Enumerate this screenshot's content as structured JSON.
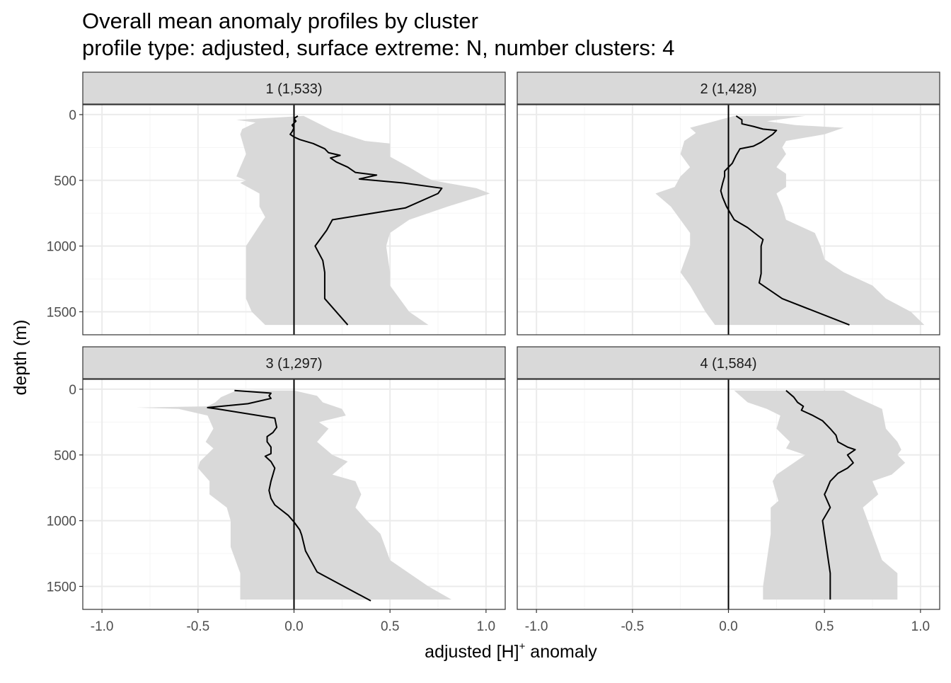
{
  "title_line1": "Overall mean anomaly profiles by cluster",
  "title_line2": "profile type: adjusted, surface extreme: N, number clusters: 4",
  "chart_data": {
    "type": "line",
    "xlabel_main": "adjusted [H]",
    "xlabel_sup": "+",
    "xlabel_rest": " anomaly",
    "ylabel": "depth (m)",
    "xlim": [
      -1.1,
      1.1
    ],
    "ylim": [
      1675,
      -75
    ],
    "y_reversed": true,
    "x_ticks": [
      -1.0,
      -0.5,
      0.0,
      0.5,
      1.0
    ],
    "x_tick_labels": [
      "-1.0",
      "-0.5",
      "0.0",
      "0.5",
      "1.0"
    ],
    "y_ticks": [
      0,
      500,
      1000,
      1500
    ],
    "y_tick_labels": [
      "0",
      "500",
      "1000",
      "1500"
    ],
    "grid": true,
    "reference_line_x": 0,
    "colors": {
      "ribbon": "#d9d9d9",
      "line": "#000000",
      "strip": "#d9d9d9",
      "grid_major": "#ebebeb",
      "grid_minor": "#f5f5f5",
      "border": "#333333"
    },
    "panels": [
      {
        "label": "1 (1,533)",
        "mean": [
          [
            0.02,
            10
          ],
          [
            0.0,
            30
          ],
          [
            0.01,
            50
          ],
          [
            -0.01,
            80
          ],
          [
            0.0,
            100
          ],
          [
            -0.01,
            130
          ],
          [
            -0.02,
            150
          ],
          [
            0.0,
            170
          ],
          [
            0.03,
            190
          ],
          [
            0.1,
            220
          ],
          [
            0.16,
            260
          ],
          [
            0.18,
            290
          ],
          [
            0.24,
            310
          ],
          [
            0.19,
            330
          ],
          [
            0.22,
            360
          ],
          [
            0.28,
            400
          ],
          [
            0.32,
            440
          ],
          [
            0.43,
            460
          ],
          [
            0.34,
            490
          ],
          [
            0.57,
            520
          ],
          [
            0.77,
            560
          ],
          [
            0.75,
            600
          ],
          [
            0.58,
            710
          ],
          [
            0.2,
            800
          ],
          [
            0.17,
            880
          ],
          [
            0.11,
            1000
          ],
          [
            0.15,
            1110
          ],
          [
            0.16,
            1200
          ],
          [
            0.16,
            1290
          ],
          [
            0.16,
            1400
          ],
          [
            0.28,
            1600
          ]
        ],
        "lower": [
          [
            -0.28,
            150
          ],
          [
            -0.27,
            110
          ],
          [
            -0.2,
            60
          ],
          [
            -0.3,
            40
          ],
          [
            -0.27,
            200
          ],
          [
            -0.25,
            300
          ],
          [
            -0.28,
            400
          ],
          [
            -0.3,
            470
          ],
          [
            -0.25,
            500
          ],
          [
            -0.28,
            520
          ],
          [
            -0.18,
            600
          ],
          [
            -0.18,
            700
          ],
          [
            -0.15,
            780
          ],
          [
            -0.16,
            800
          ],
          [
            -0.25,
            1000
          ],
          [
            -0.25,
            1200
          ],
          [
            -0.25,
            1300
          ],
          [
            -0.25,
            1400
          ],
          [
            -0.22,
            1500
          ],
          [
            -0.15,
            1600
          ]
        ],
        "upper": [
          [
            0.05,
            10
          ],
          [
            0.2,
            120
          ],
          [
            0.37,
            200
          ],
          [
            0.5,
            220
          ],
          [
            0.5,
            320
          ],
          [
            0.6,
            400
          ],
          [
            0.68,
            470
          ],
          [
            0.72,
            500
          ],
          [
            0.95,
            560
          ],
          [
            1.02,
            600
          ],
          [
            0.8,
            700
          ],
          [
            0.6,
            800
          ],
          [
            0.5,
            900
          ],
          [
            0.48,
            1000
          ],
          [
            0.5,
            1200
          ],
          [
            0.5,
            1300
          ],
          [
            0.6,
            1500
          ],
          [
            0.7,
            1600
          ]
        ]
      },
      {
        "label": "2 (1,428)",
        "mean": [
          [
            0.04,
            10
          ],
          [
            0.07,
            40
          ],
          [
            0.07,
            70
          ],
          [
            0.13,
            90
          ],
          [
            0.18,
            110
          ],
          [
            0.25,
            120
          ],
          [
            0.23,
            150
          ],
          [
            0.2,
            180
          ],
          [
            0.17,
            210
          ],
          [
            0.13,
            240
          ],
          [
            0.06,
            260
          ],
          [
            0.04,
            310
          ],
          [
            0.02,
            370
          ],
          [
            -0.02,
            430
          ],
          [
            -0.02,
            470
          ],
          [
            -0.03,
            520
          ],
          [
            -0.04,
            580
          ],
          [
            -0.03,
            630
          ],
          [
            -0.01,
            700
          ],
          [
            0.03,
            800
          ],
          [
            0.1,
            860
          ],
          [
            0.18,
            950
          ],
          [
            0.17,
            1000
          ],
          [
            0.17,
            1110
          ],
          [
            0.17,
            1210
          ],
          [
            0.16,
            1280
          ],
          [
            0.28,
            1400
          ],
          [
            0.63,
            1600
          ]
        ],
        "lower": [
          [
            0.03,
            10
          ],
          [
            -0.2,
            100
          ],
          [
            -0.17,
            140
          ],
          [
            -0.23,
            200
          ],
          [
            -0.25,
            300
          ],
          [
            -0.2,
            400
          ],
          [
            -0.25,
            470
          ],
          [
            -0.28,
            550
          ],
          [
            -0.38,
            600
          ],
          [
            -0.3,
            700
          ],
          [
            -0.25,
            800
          ],
          [
            -0.2,
            900
          ],
          [
            -0.2,
            1000
          ],
          [
            -0.25,
            1200
          ],
          [
            -0.2,
            1300
          ],
          [
            -0.12,
            1500
          ],
          [
            -0.07,
            1600
          ]
        ],
        "upper": [
          [
            0.4,
            10
          ],
          [
            0.25,
            40
          ],
          [
            0.2,
            50
          ],
          [
            0.35,
            80
          ],
          [
            0.6,
            100
          ],
          [
            0.5,
            150
          ],
          [
            0.3,
            200
          ],
          [
            0.28,
            250
          ],
          [
            0.3,
            300
          ],
          [
            0.25,
            400
          ],
          [
            0.3,
            450
          ],
          [
            0.3,
            550
          ],
          [
            0.25,
            600
          ],
          [
            0.28,
            700
          ],
          [
            0.3,
            800
          ],
          [
            0.45,
            900
          ],
          [
            0.48,
            1000
          ],
          [
            0.5,
            1100
          ],
          [
            0.6,
            1200
          ],
          [
            0.75,
            1300
          ],
          [
            0.82,
            1400
          ],
          [
            0.95,
            1500
          ],
          [
            1.02,
            1600
          ]
        ]
      },
      {
        "label": "3 (1,297)",
        "mean": [
          [
            -0.31,
            10
          ],
          [
            -0.12,
            30
          ],
          [
            -0.13,
            50
          ],
          [
            -0.12,
            70
          ],
          [
            -0.24,
            110
          ],
          [
            -0.45,
            140
          ],
          [
            -0.4,
            150
          ],
          [
            -0.1,
            220
          ],
          [
            -0.09,
            290
          ],
          [
            -0.11,
            330
          ],
          [
            -0.14,
            360
          ],
          [
            -0.14,
            400
          ],
          [
            -0.12,
            440
          ],
          [
            -0.12,
            490
          ],
          [
            -0.15,
            510
          ],
          [
            -0.12,
            550
          ],
          [
            -0.1,
            600
          ],
          [
            -0.12,
            700
          ],
          [
            -0.13,
            770
          ],
          [
            -0.12,
            830
          ],
          [
            -0.1,
            880
          ],
          [
            -0.03,
            960
          ],
          [
            0.0,
            1010
          ],
          [
            0.03,
            1070
          ],
          [
            0.04,
            1110
          ],
          [
            0.06,
            1230
          ],
          [
            0.12,
            1390
          ],
          [
            0.4,
            1610
          ]
        ],
        "lower": [
          [
            -0.3,
            10
          ],
          [
            -0.38,
            60
          ],
          [
            -0.41,
            100
          ],
          [
            -0.45,
            130
          ],
          [
            -0.82,
            140
          ],
          [
            -0.6,
            150
          ],
          [
            -0.45,
            200
          ],
          [
            -0.42,
            300
          ],
          [
            -0.46,
            400
          ],
          [
            -0.42,
            450
          ],
          [
            -0.49,
            550
          ],
          [
            -0.5,
            600
          ],
          [
            -0.44,
            700
          ],
          [
            -0.44,
            800
          ],
          [
            -0.35,
            900
          ],
          [
            -0.33,
            1000
          ],
          [
            -0.33,
            1200
          ],
          [
            -0.28,
            1400
          ],
          [
            -0.28,
            1600
          ]
        ],
        "upper": [
          [
            0.0,
            10
          ],
          [
            0.12,
            50
          ],
          [
            0.15,
            100
          ],
          [
            0.25,
            150
          ],
          [
            0.27,
            200
          ],
          [
            0.13,
            250
          ],
          [
            0.18,
            300
          ],
          [
            0.12,
            400
          ],
          [
            0.2,
            500
          ],
          [
            0.28,
            550
          ],
          [
            0.2,
            650
          ],
          [
            0.32,
            700
          ],
          [
            0.35,
            800
          ],
          [
            0.32,
            900
          ],
          [
            0.38,
            1000
          ],
          [
            0.45,
            1100
          ],
          [
            0.5,
            1300
          ],
          [
            0.7,
            1500
          ],
          [
            0.82,
            1600
          ]
        ]
      },
      {
        "label": "4 (1,584)",
        "mean": [
          [
            0.3,
            10
          ],
          [
            0.34,
            60
          ],
          [
            0.36,
            100
          ],
          [
            0.39,
            130
          ],
          [
            0.38,
            160
          ],
          [
            0.44,
            200
          ],
          [
            0.49,
            240
          ],
          [
            0.51,
            270
          ],
          [
            0.53,
            300
          ],
          [
            0.56,
            350
          ],
          [
            0.57,
            400
          ],
          [
            0.62,
            440
          ],
          [
            0.66,
            460
          ],
          [
            0.62,
            500
          ],
          [
            0.65,
            560
          ],
          [
            0.62,
            600
          ],
          [
            0.57,
            640
          ],
          [
            0.53,
            700
          ],
          [
            0.51,
            770
          ],
          [
            0.5,
            800
          ],
          [
            0.53,
            900
          ],
          [
            0.49,
            1000
          ],
          [
            0.5,
            1100
          ],
          [
            0.51,
            1200
          ],
          [
            0.52,
            1300
          ],
          [
            0.53,
            1400
          ],
          [
            0.53,
            1600
          ]
        ],
        "lower": [
          [
            0.03,
            10
          ],
          [
            0.1,
            100
          ],
          [
            0.2,
            150
          ],
          [
            0.27,
            200
          ],
          [
            0.25,
            300
          ],
          [
            0.32,
            400
          ],
          [
            0.3,
            450
          ],
          [
            0.4,
            500
          ],
          [
            0.35,
            550
          ],
          [
            0.25,
            650
          ],
          [
            0.23,
            700
          ],
          [
            0.25,
            800
          ],
          [
            0.26,
            850
          ],
          [
            0.22,
            900
          ],
          [
            0.22,
            1100
          ],
          [
            0.2,
            1300
          ],
          [
            0.18,
            1500
          ],
          [
            0.18,
            1600
          ]
        ],
        "upper": [
          [
            0.6,
            10
          ],
          [
            0.65,
            50
          ],
          [
            0.8,
            150
          ],
          [
            0.82,
            300
          ],
          [
            0.88,
            400
          ],
          [
            0.9,
            460
          ],
          [
            0.88,
            500
          ],
          [
            0.92,
            560
          ],
          [
            0.85,
            650
          ],
          [
            0.75,
            700
          ],
          [
            0.78,
            800
          ],
          [
            0.7,
            900
          ],
          [
            0.75,
            1100
          ],
          [
            0.8,
            1300
          ],
          [
            0.88,
            1400
          ],
          [
            0.88,
            1600
          ]
        ]
      }
    ]
  }
}
